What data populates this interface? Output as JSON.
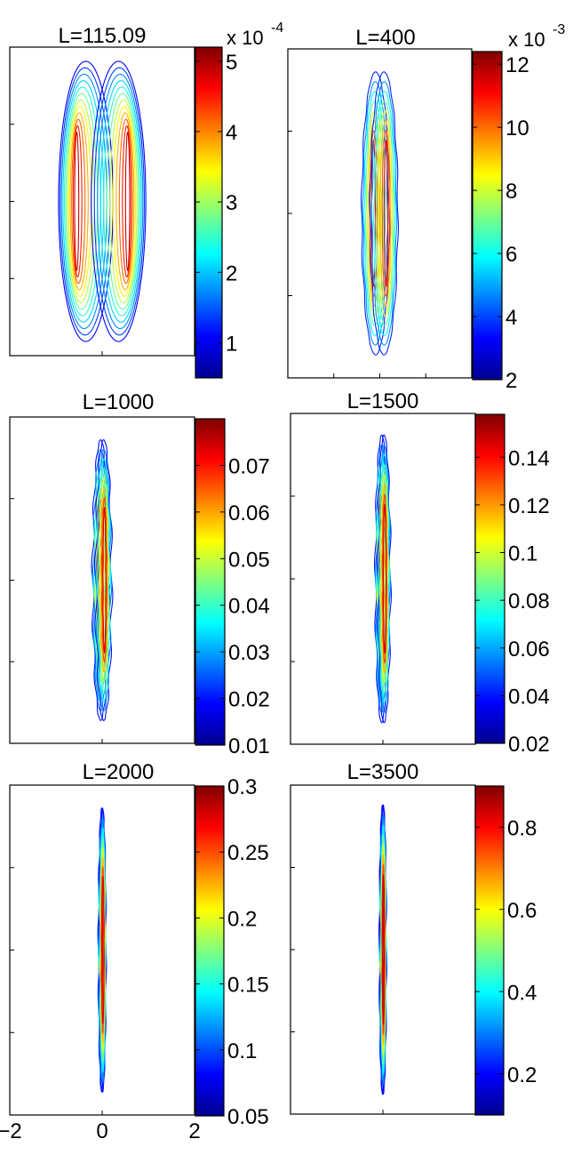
{
  "chart_data": [
    {
      "type": "contour",
      "title": "L=115.09",
      "colorbar": {
        "min": 0.5,
        "max": 5.2,
        "ticks": [
          1,
          2,
          3,
          4,
          5
        ],
        "tick_labels": [
          "1",
          "2",
          "3",
          "4",
          "5"
        ],
        "exponent_label": "x 10",
        "exponent_power": "-4"
      },
      "contour": {
        "levels": 12,
        "x_scale": 0.62,
        "y_scale": 0.95,
        "x_offset": 0.56,
        "center_value": 5.0,
        "outer_value": 0.7
      },
      "xlim": [
        -2,
        2
      ],
      "ylim": [
        -1,
        1
      ],
      "x_ticks": [
        0,
        2
      ],
      "x_tick_labels": []
    },
    {
      "type": "contour",
      "title": "L=400",
      "colorbar": {
        "min": 2,
        "max": 12.4,
        "ticks": [
          2,
          4,
          6,
          8,
          10,
          12
        ],
        "tick_labels": [
          "2",
          "4",
          "6",
          "8",
          "10",
          "12"
        ],
        "exponent_label": "x 10",
        "exponent_power": "-3"
      },
      "contour": {
        "levels": 8,
        "x_scale": 0.32,
        "y_scale": 0.92,
        "x_offset": 0.14,
        "center_value": 12,
        "outer_value": 2.6
      },
      "xlim": [
        -2,
        2
      ],
      "ylim": [
        -1,
        1
      ],
      "x_ticks": [
        -1,
        0,
        1
      ],
      "x_tick_labels": []
    },
    {
      "type": "contour",
      "title": "L=1000",
      "colorbar": {
        "min": 0.01,
        "max": 0.08,
        "ticks": [
          0.01,
          0.02,
          0.03,
          0.04,
          0.05,
          0.06,
          0.07
        ],
        "tick_labels": [
          "0.01",
          "0.02",
          "0.03",
          "0.04",
          "0.05",
          "0.06",
          "0.07"
        ]
      },
      "contour": {
        "levels": 8,
        "x_scale": 0.17,
        "y_scale": 0.92,
        "x_offset": 0.05,
        "center_value": 0.078,
        "outer_value": 0.012
      },
      "xlim": [
        -2,
        2
      ],
      "ylim": [
        -1,
        1
      ],
      "x_ticks": [
        0
      ],
      "x_tick_labels": []
    },
    {
      "type": "contour",
      "title": "L=1500",
      "colorbar": {
        "min": 0.02,
        "max": 0.158,
        "ticks": [
          0.02,
          0.04,
          0.06,
          0.08,
          0.1,
          0.12,
          0.14
        ],
        "tick_labels": [
          "0.02",
          "0.04",
          "0.06",
          "0.08",
          "0.1",
          "0.12",
          "0.14"
        ]
      },
      "contour": {
        "levels": 8,
        "x_scale": 0.13,
        "y_scale": 0.93,
        "x_offset": 0.04,
        "center_value": 0.155,
        "outer_value": 0.024
      },
      "xlim": [
        -2,
        2
      ],
      "ylim": [
        -1,
        1
      ],
      "x_ticks": [
        0
      ],
      "x_tick_labels": []
    },
    {
      "type": "contour",
      "title": "L=2000",
      "colorbar": {
        "min": 0.05,
        "max": 0.3,
        "ticks": [
          0.05,
          0.1,
          0.15,
          0.2,
          0.25,
          0.3
        ],
        "tick_labels": [
          "0.05",
          "0.1",
          "0.15",
          "0.2",
          "0.25",
          "0.3"
        ]
      },
      "contour": {
        "levels": 8,
        "x_scale": 0.06,
        "y_scale": 0.92,
        "x_offset": 0.015,
        "center_value": 0.29,
        "outer_value": 0.06
      },
      "xlim": [
        -2,
        2
      ],
      "ylim": [
        -1,
        1
      ],
      "x_ticks": [
        -2,
        0,
        2
      ],
      "x_tick_labels": [
        "−2",
        "0",
        "2"
      ]
    },
    {
      "type": "contour",
      "title": "L=3500",
      "colorbar": {
        "min": 0.1,
        "max": 0.9,
        "ticks": [
          0.2,
          0.4,
          0.6,
          0.8
        ],
        "tick_labels": [
          "0.2",
          "0.4",
          "0.6",
          "0.8"
        ]
      },
      "contour": {
        "levels": 8,
        "x_scale": 0.055,
        "y_scale": 0.94,
        "x_offset": 0.012,
        "center_value": 0.88,
        "outer_value": 0.12
      },
      "xlim": [
        -2,
        2
      ],
      "ylim": [
        -1,
        1
      ],
      "x_ticks": [
        0
      ],
      "x_tick_labels": []
    }
  ]
}
